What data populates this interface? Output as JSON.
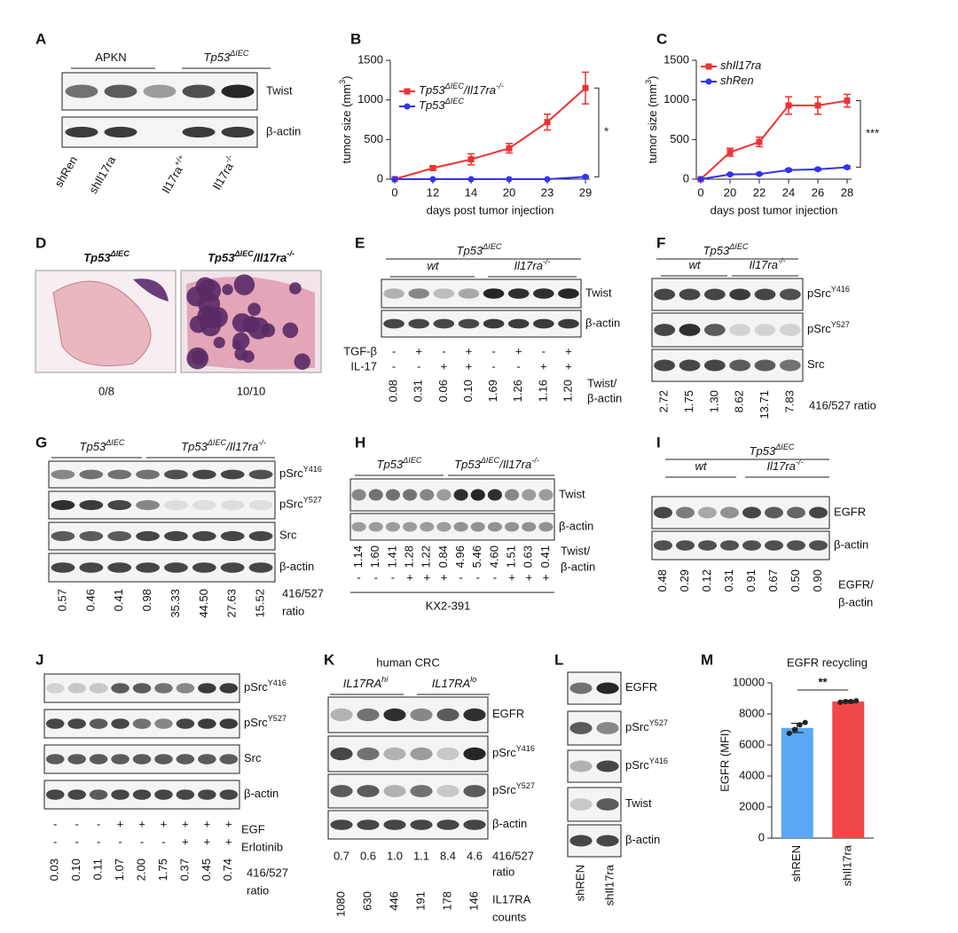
{
  "panel_labels": [
    "A",
    "B",
    "C",
    "D",
    "E",
    "F",
    "G",
    "H",
    "I",
    "J",
    "K",
    "L",
    "M"
  ],
  "chart_data": [
    {
      "type": "line",
      "categories": [
        0,
        12,
        14,
        20,
        23,
        29
      ],
      "series": [
        {
          "name": [
            "Tp53",
            "ΔIEC",
            "/Il17ra",
            "-/-"
          ],
          "color": "#ee3333",
          "marker": "square",
          "values": [
            0,
            140,
            250,
            390,
            720,
            1150
          ],
          "errors": [
            0,
            20,
            70,
            60,
            100,
            200
          ]
        },
        {
          "name": [
            "Tp53",
            "ΔIEC"
          ],
          "color": "#3333ee",
          "marker": "circle",
          "values": [
            0,
            0,
            0,
            0,
            0,
            30
          ],
          "errors": [
            0,
            0,
            0,
            0,
            0,
            10
          ]
        }
      ],
      "ylim": [
        0,
        1500
      ],
      "yticks": [
        0,
        500,
        1000,
        1500
      ],
      "y_label": [
        "tumor size (mm",
        "3",
        ")"
      ],
      "x_label": "days post tumor injection",
      "annotation": "*"
    },
    {
      "type": "line",
      "categories": [
        0,
        20,
        22,
        24,
        26,
        28
      ],
      "series": [
        {
          "name": [
            "shIl17ra"
          ],
          "color": "#ee3333",
          "marker": "square",
          "values": [
            0,
            340,
            470,
            930,
            930,
            990
          ],
          "errors": [
            0,
            50,
            60,
            110,
            110,
            80
          ]
        },
        {
          "name": [
            "shRen"
          ],
          "color": "#3333ee",
          "marker": "circle",
          "values": [
            0,
            60,
            65,
            115,
            125,
            150
          ],
          "errors": [
            0,
            10,
            10,
            15,
            15,
            15
          ]
        }
      ],
      "ylim": [
        0,
        1500
      ],
      "yticks": [
        0,
        500,
        1000,
        1500
      ],
      "y_label": [
        "tumor size (mm",
        "3",
        ")"
      ],
      "x_label": "days post tumor injection",
      "annotation": "***"
    },
    {
      "type": "bar",
      "title": "EGFR recycling",
      "categories": [
        "shREN",
        "shIl17ra"
      ],
      "values": [
        7100,
        8800
      ],
      "errors": [
        300,
        80
      ],
      "colors": [
        "#5aa8f5",
        "#f04848"
      ],
      "points": [
        [
          6750,
          7000,
          7300,
          7450
        ],
        [
          8750,
          8800,
          8800,
          8850
        ]
      ],
      "ylim": [
        0,
        10000
      ],
      "yticks": [
        0,
        2000,
        4000,
        6000,
        8000,
        10000
      ],
      "y_label": "EGFR (MFI)",
      "annotation": "**"
    }
  ],
  "A": {
    "groups": [
      [
        "APKN"
      ],
      [
        "Tp53",
        "ΔIEC"
      ]
    ],
    "rows": [
      "Twist",
      "β-actin"
    ],
    "lanes": [
      [
        "shRen"
      ],
      [
        "shIl17ra"
      ],
      [
        "Il17ra",
        "+/+"
      ],
      [
        "Il17ra",
        "-/-"
      ]
    ]
  },
  "D": {
    "titles": [
      [
        "Tp53",
        "ΔIEC"
      ],
      [
        "Tp53",
        "ΔIEC",
        "/Il17ra",
        "-/-"
      ]
    ],
    "counts": [
      "0/8",
      "10/10"
    ]
  },
  "E": {
    "title": [
      "Tp53",
      "ΔIEC"
    ],
    "groups": [
      [
        "wt"
      ],
      [
        "Il17ra",
        "-/-"
      ]
    ],
    "rows": [
      "Twist",
      "β-actin"
    ],
    "treatments": [
      {
        "name": "TGF-β",
        "signs": [
          "-",
          "+",
          "-",
          "+",
          "-",
          "+",
          "-",
          "+"
        ]
      },
      {
        "name": "IL-17",
        "signs": [
          "-",
          "-",
          "+",
          "+",
          "-",
          "-",
          "+",
          "+"
        ]
      }
    ],
    "ratios": [
      "0.08",
      "0.31",
      "0.06",
      "0.10",
      "1.69",
      "1.26",
      "1.16",
      "1.20"
    ],
    "ratio_label": [
      "Twist/",
      "β-actin"
    ]
  },
  "F": {
    "title": [
      "Tp53",
      "ΔIEC"
    ],
    "groups": [
      [
        "wt"
      ],
      [
        "Il17ra",
        "-/-"
      ]
    ],
    "rows": [
      [
        "pSrc",
        "Y416"
      ],
      [
        "pSrc",
        "Y527"
      ],
      [
        "Src"
      ]
    ],
    "ratios": [
      "2.72",
      "1.75",
      "1.30",
      "8.62",
      "13.71",
      "7.83"
    ],
    "ratio_label": [
      "416/527 ratio"
    ]
  },
  "G": {
    "groups": [
      [
        "Tp53",
        "ΔIEC"
      ],
      [
        "Tp53",
        "ΔIEC",
        "/Il17ra",
        "-/-"
      ]
    ],
    "rows": [
      [
        "pSrc",
        "Y416"
      ],
      [
        "pSrc",
        "Y527"
      ],
      [
        "Src"
      ],
      [
        "β-actin"
      ]
    ],
    "ratios": [
      "0.57",
      "0.46",
      "0.41",
      "0.98",
      "35.33",
      "44.50",
      "27.63",
      "15.52"
    ],
    "ratio_label": [
      "416/527",
      "ratio"
    ]
  },
  "H": {
    "groups": [
      [
        "Tp53",
        "ΔIEC"
      ],
      [
        "Tp53",
        "ΔIEC",
        "/Il17ra",
        "-/-"
      ]
    ],
    "rows": [
      "Twist",
      "β-actin"
    ],
    "ratios": [
      "1.14",
      "1.60",
      "1.41",
      "1.28",
      "1.22",
      "0.84",
      "4.96",
      "5.46",
      "4.60",
      "1.51",
      "0.63",
      "0.41"
    ],
    "ratio_label": [
      "Twist/",
      "β-actin"
    ],
    "signs": [
      "-",
      "-",
      "-",
      "+",
      "+",
      "+",
      "-",
      "-",
      "-",
      "+",
      "+",
      "+"
    ],
    "treatment": "KX2-391"
  },
  "I": {
    "title": [
      "Tp53",
      "ΔIEC"
    ],
    "groups": [
      [
        "wt"
      ],
      [
        "Il17ra",
        "-/-"
      ]
    ],
    "rows": [
      "EGFR",
      "β-actin"
    ],
    "ratios": [
      "0.48",
      "0.29",
      "0.12",
      "0.31",
      "0.91",
      "0.67",
      "0.50",
      "0.90"
    ],
    "ratio_label": [
      "EGFR/",
      "β-actin"
    ]
  },
  "J": {
    "rows": [
      [
        "pSrc",
        "Y416"
      ],
      [
        "pSrc",
        "Y527"
      ],
      [
        "Src"
      ],
      [
        "β-actin"
      ]
    ],
    "treatments": [
      {
        "name": "EGF",
        "signs": [
          "-",
          "-",
          "-",
          "+",
          "+",
          "+",
          "+",
          "+",
          "+"
        ]
      },
      {
        "name": "Erlotinib",
        "signs": [
          "-",
          "-",
          "-",
          "-",
          "-",
          "-",
          "+",
          "+",
          "+"
        ]
      }
    ],
    "ratios": [
      "0.03",
      "0.10",
      "0.11",
      "1.07",
      "2.00",
      "1.75",
      "0.37",
      "0.45",
      "0.74"
    ],
    "ratio_label": [
      "416/527",
      "ratio"
    ]
  },
  "K": {
    "title": "human CRC",
    "groups": [
      [
        "IL17RA",
        "hi"
      ],
      [
        "IL17RA",
        "lo"
      ]
    ],
    "rows": [
      [
        "EGFR"
      ],
      [
        "pSrc",
        "Y416"
      ],
      [
        "pSrc",
        "Y527"
      ],
      [
        "β-actin"
      ]
    ],
    "ratios": [
      "0.7",
      "0.6",
      "1.0",
      "1.1",
      "8.4",
      "4.6"
    ],
    "ratio_label": [
      "416/527",
      "ratio"
    ],
    "counts": [
      "1080",
      "630",
      "446",
      "191",
      "178",
      "146"
    ],
    "counts_label": [
      "IL17RA",
      "counts"
    ]
  },
  "L": {
    "rows": [
      [
        "EGFR"
      ],
      [
        "pSrc",
        "Y527"
      ],
      [
        "pSrc",
        "Y416"
      ],
      [
        "Twist"
      ],
      [
        "β-actin"
      ]
    ],
    "lanes": [
      "shREN",
      "shIl17ra"
    ]
  }
}
